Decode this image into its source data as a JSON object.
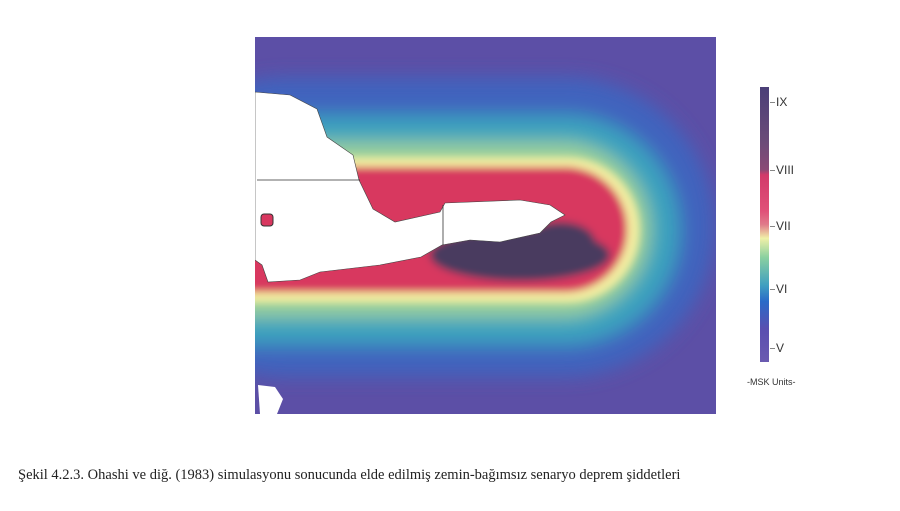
{
  "figure": {
    "caption": "Şekil 4.2.3.  Ohashi ve diğ. (1983) simulasyonu sonucunda elde edilmiş zemin-bağımsız senaryo deprem şiddetleri"
  },
  "legend": {
    "ticks": [
      "IX",
      "VIII",
      "VII",
      "VI",
      "V"
    ],
    "units": "-MSK Units-",
    "colors": {
      "IX": "#4b3f78",
      "VIII": "#d23a6a",
      "VII": "#f0f0a8",
      "VI": "#2a6ac8",
      "V": "#6a5ab0"
    }
  }
}
